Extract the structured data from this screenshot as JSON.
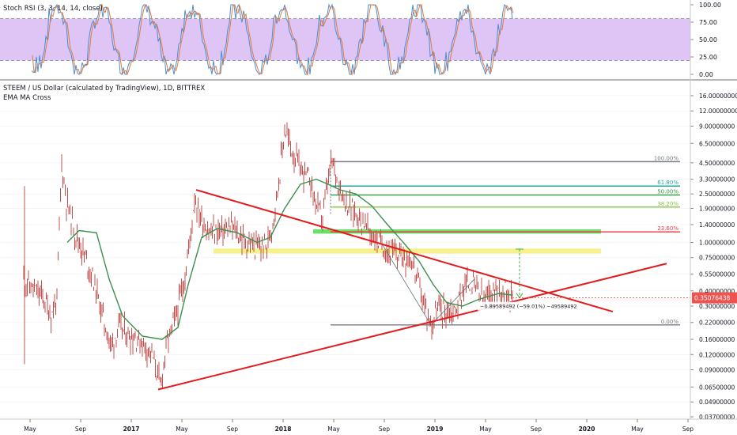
{
  "rsi_pane": {
    "title": "Stoch RSI (3, 3, 14, 14, close)",
    "ticks": [
      "100.00",
      "75.00",
      "50.00",
      "25.00",
      "0.00"
    ],
    "tick_values": [
      100,
      75,
      50,
      25,
      0
    ],
    "band_upper": 80,
    "band_lower": 20,
    "colors": {
      "band": "#d3b2f2",
      "k_line": "#4c8dd6",
      "d_line": "#e07b39"
    }
  },
  "price_pane": {
    "title": "STEEM / US Dollar (calculated by TradingView), 1D, BITTREX",
    "indicator": "EMA MA Cross",
    "price_ticks": [
      "16.00000000",
      "12.00000000",
      "9.00000000",
      "6.50000000",
      "4.50000000",
      "3.30000000",
      "2.50000000",
      "1.90000000",
      "1.40000000",
      "1.00000000",
      "0.75000000",
      "0.55000000",
      "0.40000000",
      "0.30000000",
      "0.22000000",
      "0.16000000",
      "0.12000000",
      "0.09000000",
      "0.06500000",
      "0.04900000",
      "0.03700000"
    ],
    "price_tick_values": [
      16,
      12,
      9,
      6.5,
      4.5,
      3.3,
      2.5,
      1.9,
      1.4,
      1.0,
      0.75,
      0.55,
      0.4,
      0.3,
      0.22,
      0.16,
      0.12,
      0.09,
      0.065,
      0.049,
      0.037
    ],
    "current_price_label": "0.35076438",
    "current_price": 0.35076438,
    "measure_label": "−0.89589492 (−59.01%) −49589492",
    "fib_levels": [
      {
        "label": "100.00%",
        "price": 4.6,
        "color": "#787b86"
      },
      {
        "label": "61.80%",
        "price": 2.9,
        "color": "#26a69a"
      },
      {
        "label": "50.00%",
        "price": 2.45,
        "color": "#2e9e3e"
      },
      {
        "label": "38.20%",
        "price": 1.95,
        "color": "#8bc34a"
      },
      {
        "label": "23.60%",
        "price": 1.22,
        "color": "#f23645"
      },
      {
        "label": "0.00%",
        "price": 0.21,
        "color": "#787b86"
      }
    ],
    "zones": [
      {
        "name": "green",
        "price_top": 1.28,
        "price_bottom": 1.18,
        "color": "#4cdc4c"
      },
      {
        "name": "yellow",
        "price_top": 0.89,
        "price_bottom": 0.81,
        "color": "#f4ee78"
      }
    ],
    "colors": {
      "candle": "#c0504d",
      "ema": "#3a8f4e",
      "trend": "#e31b1b",
      "price_tag": "#ef5350"
    }
  },
  "time_axis": [
    "May",
    "Sep",
    "2017",
    "May",
    "Sep",
    "2018",
    "May",
    "Sep",
    "2019",
    "May",
    "Sep",
    "2020",
    "May",
    "Sep"
  ],
  "chart_data": {
    "type": "line",
    "title": "STEEM / US Dollar (calculated by TradingView), 1D, BITTREX",
    "yscale": "log",
    "ylim": [
      0.037,
      16
    ],
    "x": [
      "2016-05",
      "2016-07",
      "2016-08",
      "2016-09",
      "2016-11",
      "2017-01",
      "2017-03",
      "2017-04",
      "2017-05",
      "2017-06",
      "2017-08",
      "2017-10",
      "2017-12",
      "2018-01",
      "2018-03",
      "2018-04",
      "2018-05",
      "2018-06",
      "2018-07",
      "2018-09",
      "2018-11",
      "2018-12",
      "2019-02",
      "2019-04",
      "2019-05",
      "2019-07"
    ],
    "series": [
      {
        "values": [
          0.5,
          0.35,
          4.5,
          0.6,
          0.3,
          0.15,
          0.12,
          0.065,
          0.6,
          2.4,
          1.0,
          1.0,
          3.5,
          8.5,
          3.5,
          1.9,
          4.6,
          2.0,
          1.5,
          0.85,
          0.7,
          0.21,
          0.28,
          0.5,
          0.42,
          0.35
        ]
      }
    ]
  }
}
